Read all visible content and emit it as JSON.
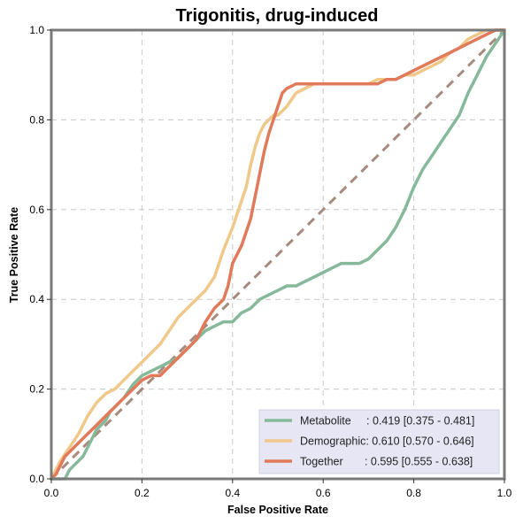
{
  "chart_data": {
    "type": "line",
    "title": "Trigonitis, drug-induced",
    "xlabel": "False Positive Rate",
    "ylabel": "True Positive Rate",
    "xlim": [
      0,
      1
    ],
    "ylim": [
      0,
      1
    ],
    "xticks": [
      "0.0",
      "0.2",
      "0.4",
      "0.6",
      "0.8",
      "1.0"
    ],
    "yticks": [
      "0.0",
      "0.2",
      "0.4",
      "0.6",
      "0.8",
      "1.0"
    ],
    "xtick_values": [
      0,
      0.2,
      0.4,
      0.6,
      0.8,
      1.0
    ],
    "ytick_values": [
      0,
      0.2,
      0.4,
      0.6,
      0.8,
      1.0
    ],
    "grid": true,
    "legend_position": "bottom-right",
    "reference_line": {
      "x": [
        0,
        1
      ],
      "y": [
        0,
        1
      ],
      "color": "#a68a7e",
      "style": "dashed"
    },
    "series": [
      {
        "name": "Metabolite",
        "label": "Metabolite     : 0.419 [0.375 - 0.481]",
        "color": "#86b89a",
        "x": [
          0,
          0.01,
          0.03,
          0.04,
          0.05,
          0.07,
          0.08,
          0.09,
          0.1,
          0.11,
          0.12,
          0.13,
          0.14,
          0.16,
          0.18,
          0.2,
          0.22,
          0.24,
          0.26,
          0.28,
          0.3,
          0.32,
          0.34,
          0.36,
          0.38,
          0.4,
          0.42,
          0.44,
          0.46,
          0.48,
          0.5,
          0.52,
          0.54,
          0.56,
          0.58,
          0.6,
          0.62,
          0.64,
          0.66,
          0.68,
          0.7,
          0.72,
          0.74,
          0.76,
          0.78,
          0.8,
          0.82,
          0.84,
          0.86,
          0.88,
          0.9,
          0.92,
          0.94,
          0.96,
          0.98,
          1.0
        ],
        "y": [
          0,
          0,
          0,
          0.02,
          0.03,
          0.05,
          0.07,
          0.09,
          0.11,
          0.12,
          0.13,
          0.15,
          0.16,
          0.18,
          0.21,
          0.23,
          0.24,
          0.25,
          0.26,
          0.27,
          0.29,
          0.31,
          0.33,
          0.34,
          0.35,
          0.35,
          0.37,
          0.38,
          0.4,
          0.41,
          0.42,
          0.43,
          0.43,
          0.44,
          0.45,
          0.46,
          0.47,
          0.48,
          0.48,
          0.48,
          0.49,
          0.51,
          0.53,
          0.56,
          0.6,
          0.65,
          0.69,
          0.72,
          0.75,
          0.78,
          0.81,
          0.86,
          0.9,
          0.94,
          0.97,
          1.0
        ]
      },
      {
        "name": "Demographic",
        "label": "Demographic: 0.610 [0.570 - 0.646]",
        "color": "#f0c88a",
        "x": [
          0,
          0.01,
          0.02,
          0.04,
          0.06,
          0.08,
          0.1,
          0.12,
          0.14,
          0.16,
          0.18,
          0.2,
          0.22,
          0.24,
          0.26,
          0.28,
          0.3,
          0.32,
          0.34,
          0.36,
          0.38,
          0.4,
          0.42,
          0.43,
          0.44,
          0.45,
          0.46,
          0.47,
          0.48,
          0.49,
          0.5,
          0.52,
          0.54,
          0.56,
          0.58,
          0.6,
          0.62,
          0.64,
          0.66,
          0.68,
          0.7,
          0.72,
          0.74,
          0.76,
          0.78,
          0.8,
          0.82,
          0.84,
          0.86,
          0.88,
          0.9,
          0.92,
          0.94,
          0.96,
          0.98,
          1.0
        ],
        "y": [
          0,
          0.02,
          0.04,
          0.07,
          0.1,
          0.14,
          0.17,
          0.19,
          0.2,
          0.22,
          0.24,
          0.26,
          0.28,
          0.3,
          0.33,
          0.36,
          0.38,
          0.4,
          0.42,
          0.45,
          0.51,
          0.56,
          0.62,
          0.65,
          0.7,
          0.74,
          0.77,
          0.79,
          0.8,
          0.81,
          0.81,
          0.83,
          0.86,
          0.87,
          0.88,
          0.88,
          0.88,
          0.88,
          0.88,
          0.88,
          0.88,
          0.89,
          0.89,
          0.89,
          0.9,
          0.9,
          0.91,
          0.92,
          0.93,
          0.95,
          0.96,
          0.98,
          0.99,
          1.0,
          1.0,
          1.0
        ]
      },
      {
        "name": "Together",
        "label": "Together       : 0.595 [0.555 - 0.638]",
        "color": "#e07a5a",
        "x": [
          0,
          0.01,
          0.02,
          0.03,
          0.04,
          0.06,
          0.08,
          0.1,
          0.12,
          0.14,
          0.16,
          0.18,
          0.2,
          0.22,
          0.24,
          0.26,
          0.28,
          0.3,
          0.32,
          0.34,
          0.36,
          0.38,
          0.39,
          0.4,
          0.42,
          0.43,
          0.44,
          0.45,
          0.46,
          0.47,
          0.48,
          0.49,
          0.5,
          0.51,
          0.52,
          0.54,
          0.56,
          0.58,
          0.6,
          0.62,
          0.64,
          0.66,
          0.68,
          0.7,
          0.72,
          0.74,
          0.76,
          0.78,
          0.8,
          0.82,
          0.84,
          0.86,
          0.88,
          0.9,
          0.92,
          0.94,
          0.96,
          0.98,
          1.0
        ],
        "y": [
          0,
          0.01,
          0.03,
          0.05,
          0.06,
          0.08,
          0.1,
          0.12,
          0.14,
          0.16,
          0.18,
          0.2,
          0.22,
          0.23,
          0.23,
          0.25,
          0.27,
          0.29,
          0.31,
          0.35,
          0.38,
          0.4,
          0.43,
          0.48,
          0.52,
          0.55,
          0.58,
          0.63,
          0.68,
          0.73,
          0.77,
          0.8,
          0.83,
          0.86,
          0.87,
          0.88,
          0.88,
          0.88,
          0.88,
          0.88,
          0.88,
          0.88,
          0.88,
          0.88,
          0.88,
          0.89,
          0.89,
          0.9,
          0.91,
          0.92,
          0.93,
          0.94,
          0.95,
          0.96,
          0.97,
          0.98,
          0.99,
          1.0,
          1.0
        ]
      }
    ]
  }
}
